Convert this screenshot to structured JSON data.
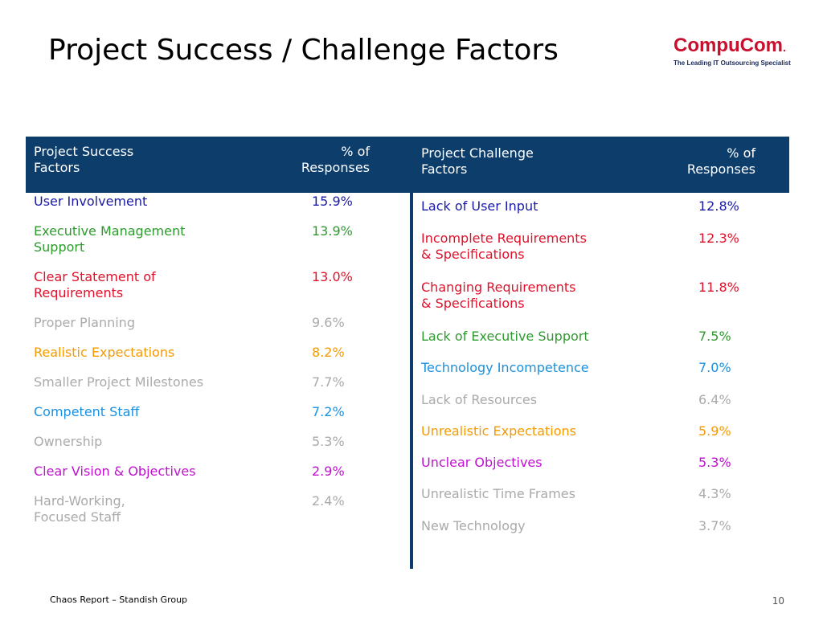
{
  "slide": {
    "title": "Project Success / Challenge Factors",
    "footer_source": "Chaos Report – Standish Group",
    "page_number": "10"
  },
  "logo": {
    "name": "CompuCom",
    "tagline": "The Leading IT Outsourcing Specialist"
  },
  "success_table": {
    "header_label": "Project Success\nFactors",
    "header_pct": "% of\nResponses",
    "rows": [
      {
        "label": "User Involvement",
        "pct": "15.9%",
        "color": "#1a1aa6"
      },
      {
        "label": "Executive Management\nSupport",
        "pct": "13.9%",
        "color": "#2e9a2e"
      },
      {
        "label": "Clear Statement of\nRequirements",
        "pct": "13.0%",
        "color": "#e0102a"
      },
      {
        "label": "Proper Planning",
        "pct": "9.6%",
        "color": "#aaaaaa"
      },
      {
        "label": "Realistic Expectations",
        "pct": "8.2%",
        "color": "#f59a00"
      },
      {
        "label": "Smaller Project Milestones",
        "pct": "7.7%",
        "color": "#aaaaaa"
      },
      {
        "label": "Competent Staff",
        "pct": "7.2%",
        "color": "#1a90e0"
      },
      {
        "label": "Ownership",
        "pct": "5.3%",
        "color": "#aaaaaa"
      },
      {
        "label": "Clear Vision & Objectives",
        "pct": "2.9%",
        "color": "#c010d0"
      },
      {
        "label": "Hard-Working,\nFocused Staff",
        "pct": "2.4%",
        "color": "#aaaaaa"
      }
    ]
  },
  "challenge_table": {
    "header_label": "Project Challenge\nFactors",
    "header_pct": "% of\nResponses",
    "rows": [
      {
        "label": "Lack of User Input",
        "pct": "12.8%",
        "color": "#1a1aa6"
      },
      {
        "label": "Incomplete Requirements\n& Specifications",
        "pct": "12.3%",
        "color": "#e0102a"
      },
      {
        "label": "Changing Requirements\n& Specifications",
        "pct": "11.8%",
        "color": "#e0102a"
      },
      {
        "label": "Lack of Executive Support",
        "pct": "7.5%",
        "color": "#2e9a2e"
      },
      {
        "label": "Technology Incompetence",
        "pct": "7.0%",
        "color": "#1a90e0"
      },
      {
        "label": "Lack of Resources",
        "pct": "6.4%",
        "color": "#aaaaaa"
      },
      {
        "label": "Unrealistic Expectations",
        "pct": "5.9%",
        "color": "#f59a00"
      },
      {
        "label": "Unclear Objectives",
        "pct": "5.3%",
        "color": "#c010d0"
      },
      {
        "label": "Unrealistic Time Frames",
        "pct": "4.3%",
        "color": "#aaaaaa"
      },
      {
        "label": "New Technology",
        "pct": "3.7%",
        "color": "#aaaaaa"
      }
    ]
  }
}
